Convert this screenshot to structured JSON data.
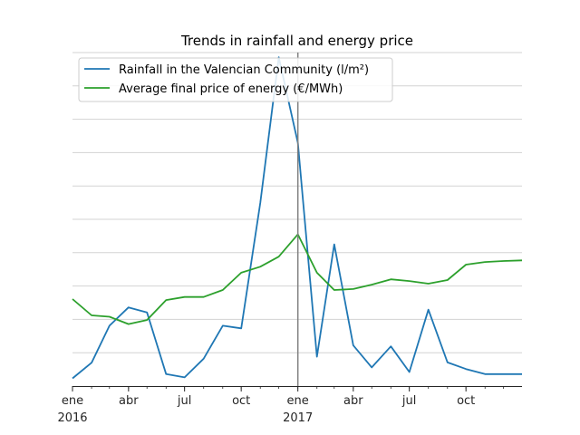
{
  "chart_data": {
    "type": "line",
    "title": "Trends in rainfall and energy price",
    "xlabel": "",
    "ylabel": "",
    "x": [
      "2016-01",
      "2016-02",
      "2016-03",
      "2016-04",
      "2016-05",
      "2016-06",
      "2016-07",
      "2016-08",
      "2016-09",
      "2016-10",
      "2016-11",
      "2016-12",
      "2017-01",
      "2017-02",
      "2017-03",
      "2017-04",
      "2017-05",
      "2017-06",
      "2017-07",
      "2017-08",
      "2017-09",
      "2017-10",
      "2017-11",
      "2017-12",
      "2017-12-31"
    ],
    "x_ticks": [
      {
        "x": "2016-01",
        "label": "ene",
        "sublabel": "2016"
      },
      {
        "x": "2016-04",
        "label": "abr",
        "sublabel": ""
      },
      {
        "x": "2016-07",
        "label": "jul",
        "sublabel": ""
      },
      {
        "x": "2016-10",
        "label": "oct",
        "sublabel": ""
      },
      {
        "x": "2017-01",
        "label": "ene",
        "sublabel": "2017"
      },
      {
        "x": "2017-04",
        "label": "abr",
        "sublabel": ""
      },
      {
        "x": "2017-07",
        "label": "jul",
        "sublabel": ""
      },
      {
        "x": "2017-10",
        "label": "oct",
        "sublabel": ""
      }
    ],
    "ylim": [
      0,
      100
    ],
    "grid": "horizontal",
    "y_tick_labels_shown": false,
    "vertical_marker": "2017-01",
    "legend_position": "top-left",
    "series": [
      {
        "name": "Rainfall in the Valencian Community (l/m²)",
        "color": "#1f77b4",
        "values": [
          2.3,
          7.0,
          18.1,
          23.6,
          22.1,
          3.6,
          2.6,
          8.2,
          18.1,
          17.3,
          54.9,
          98.6,
          72.9,
          8.8,
          42.5,
          12.2,
          5.6,
          11.9,
          4.2,
          22.9,
          7.1,
          5.1,
          3.6,
          3.6,
          3.6
        ]
      },
      {
        "name": "Average final price of energy (€/MWh)",
        "color": "#2ca02c",
        "values": [
          26.1,
          21.2,
          20.8,
          18.6,
          19.8,
          25.8,
          26.7,
          26.7,
          28.8,
          34.0,
          35.8,
          38.8,
          45.5,
          34.0,
          28.8,
          29.1,
          30.4,
          32.0,
          31.5,
          30.7,
          31.8,
          36.4,
          37.2,
          37.5,
          37.7
        ]
      }
    ]
  }
}
